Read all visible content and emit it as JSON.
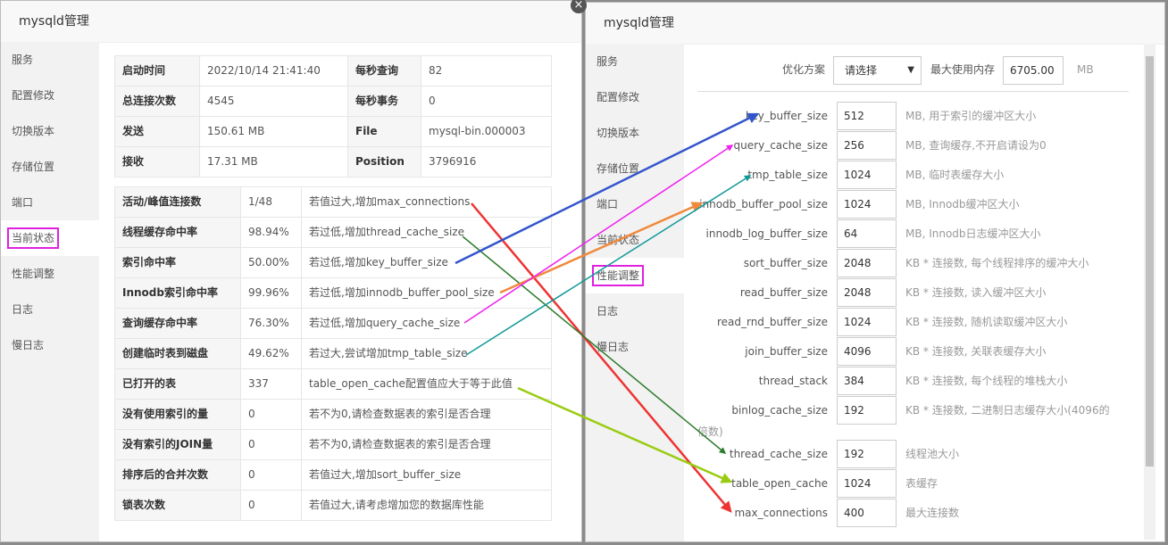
{
  "left": {
    "title": "mysqld管理",
    "menu": [
      "服务",
      "配置修改",
      "切换版本",
      "存储位置",
      "端口",
      "当前状态",
      "性能调整",
      "日志",
      "慢日志"
    ],
    "status": [
      [
        "启动时间",
        "2022/10/14 21:41:40",
        "每秒查询",
        "82"
      ],
      [
        "总连接次数",
        "4545",
        "每秒事务",
        "0"
      ],
      [
        "发送",
        "150.61 MB",
        "File",
        "mysql-bin.000003"
      ],
      [
        "接收",
        "17.31 MB",
        "Position",
        "3796916"
      ]
    ],
    "metrics": [
      [
        "活动/峰值连接数",
        "1/48",
        "若值过大,增加max_connections"
      ],
      [
        "线程缓存命中率",
        "98.94%",
        "若过低,增加thread_cache_size"
      ],
      [
        "索引命中率",
        "50.00%",
        "若过低,增加key_buffer_size"
      ],
      [
        "Innodb索引命中率",
        "99.96%",
        "若过低,增加innodb_buffer_pool_size"
      ],
      [
        "查询缓存命中率",
        "76.30%",
        "若过低,增加query_cache_size"
      ],
      [
        "创建临时表到磁盘",
        "49.62%",
        "若过大,尝试增加tmp_table_size"
      ],
      [
        "已打开的表",
        "337",
        "table_open_cache配置值应大于等于此值"
      ],
      [
        "没有使用索引的量",
        "0",
        "若不为0,请检查数据表的索引是否合理"
      ],
      [
        "没有索引的JOIN量",
        "0",
        "若不为0,请检查数据表的索引是否合理"
      ],
      [
        "排序后的合并次数",
        "0",
        "若值过大,增加sort_buffer_size"
      ],
      [
        "锁表次数",
        "0",
        "若值过大,请考虑增加您的数据库性能"
      ]
    ]
  },
  "right": {
    "title": "mysqld管理",
    "menu": [
      "服务",
      "配置修改",
      "切换版本",
      "存储位置",
      "端口",
      "当前状态",
      "性能调整",
      "日志",
      "慢日志"
    ],
    "plan_label": "优化方案",
    "plan_select": "请选择",
    "max_mem_label": "最大使用内存",
    "max_mem": "6705.00",
    "max_mem_unit": "MB",
    "params": [
      {
        "name": "key_buffer_size",
        "value": "512",
        "desc": "MB, 用于索引的缓冲区大小"
      },
      {
        "name": "query_cache_size",
        "value": "256",
        "desc": "MB, 查询缓存,不开启请设为0"
      },
      {
        "name": "tmp_table_size",
        "value": "1024",
        "desc": "MB, 临时表缓存大小"
      },
      {
        "name": "innodb_buffer_pool_size",
        "value": "1024",
        "desc": "MB, Innodb缓冲区大小"
      },
      {
        "name": "innodb_log_buffer_size",
        "value": "64",
        "desc": "MB, Innodb日志缓冲区大小"
      },
      {
        "name": "sort_buffer_size",
        "value": "2048",
        "desc": "KB * 连接数, 每个线程排序的缓冲大小"
      },
      {
        "name": "read_buffer_size",
        "value": "2048",
        "desc": "KB * 连接数, 读入缓冲区大小"
      },
      {
        "name": "read_rnd_buffer_size",
        "value": "1024",
        "desc": "KB * 连接数, 随机读取缓冲区大小"
      },
      {
        "name": "join_buffer_size",
        "value": "4096",
        "desc": "KB * 连接数, 关联表缓存大小"
      },
      {
        "name": "thread_stack",
        "value": "384",
        "desc": "KB * 连接数, 每个线程的堆栈大小"
      },
      {
        "name": "binlog_cache_size",
        "value": "192",
        "desc": "KB * 连接数, 二进制日志缓存大小(4096的倍数)"
      },
      {
        "name": "thread_cache_size",
        "value": "192",
        "desc": "线程池大小"
      },
      {
        "name": "table_open_cache",
        "value": "1024",
        "desc": "表缓存"
      },
      {
        "name": "max_connections",
        "value": "400",
        "desc": "最大连接数"
      }
    ]
  }
}
